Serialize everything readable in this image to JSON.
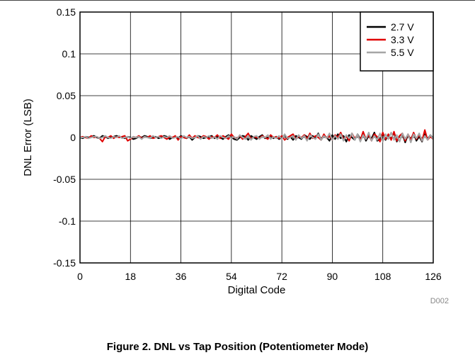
{
  "figure_id": "D002",
  "caption": "Figure 2. DNL vs Tap Position (Potentiometer Mode)",
  "chart_data": {
    "type": "line",
    "title": "",
    "xlabel": "Digital Code",
    "ylabel": "DNL Error (LSB)",
    "xlim": [
      0,
      126
    ],
    "ylim": [
      -0.15,
      0.15
    ],
    "xticks": [
      0,
      18,
      36,
      54,
      72,
      90,
      108,
      126
    ],
    "yticks": [
      -0.15,
      -0.1,
      -0.05,
      0,
      0.05,
      0.1,
      0.15
    ],
    "ytick_labels": [
      "-0.15",
      "-0.1",
      "-0.05",
      "0",
      "0.05",
      "0.1",
      "0.15"
    ],
    "grid": true,
    "legend_position": "top-right",
    "series": [
      {
        "name": "2.7 V",
        "color": "#000000",
        "values": [
          0,
          -0.001,
          0.001,
          0,
          0.001,
          0.002,
          0,
          -0.001,
          0.002,
          0.001,
          -0.001,
          0,
          0.001,
          0.002,
          0.001,
          0,
          -0.001,
          0.001,
          0,
          -0.002,
          -0.001,
          0.001,
          0,
          0.002,
          0.001,
          -0.001,
          0,
          0.001,
          -0.001,
          0,
          0.002,
          0.001,
          -0.002,
          0,
          0.001,
          -0.001,
          0.002,
          0,
          -0.001,
          0.001,
          -0.003,
          0,
          0.002,
          0.001,
          -0.001,
          0,
          0.001,
          0.002,
          -0.001,
          0.001,
          0,
          -0.002,
          0.001,
          0.003,
          0,
          -0.002,
          -0.003,
          0,
          0.002,
          0.001,
          -0.003,
          0.002,
          0,
          -0.002,
          0.001,
          0.003,
          -0.001,
          0,
          0.002,
          -0.001,
          0.001,
          -0.002,
          0,
          0.003,
          -0.002,
          0.001,
          -0.003,
          0.002,
          0,
          -0.002,
          0.003,
          0.001,
          -0.002,
          0.002,
          -0.001,
          0.005,
          -0.003,
          0.002,
          0,
          -0.004,
          0.003,
          -0.002,
          0.004,
          -0.001,
          0.002,
          -0.005,
          0.003,
          0,
          -0.003,
          0.004,
          -0.002,
          0.005,
          -0.004,
          0.002,
          -0.001,
          0.006,
          -0.004,
          -0.002,
          0.005,
          -0.003,
          0.003,
          -0.002,
          0.006,
          -0.005,
          0.002,
          0.004,
          -0.006,
          0.003,
          -0.002,
          0.005,
          -0.004,
          0.001,
          -0.005,
          0.004,
          -0.002,
          0.003,
          -0.001
        ]
      },
      {
        "name": "3.3 V",
        "color": "#e00000",
        "values": [
          0,
          0.001,
          0,
          -0.001,
          0.002,
          0,
          0.001,
          -0.001,
          -0.005,
          0.001,
          0,
          0.002,
          -0.001,
          0.001,
          0,
          0.001,
          0.002,
          -0.004,
          -0.002,
          0.001,
          0,
          0.002,
          -0.001,
          0.001,
          0,
          0.002,
          -0.001,
          0,
          0.001,
          0.002,
          0,
          -0.002,
          0.001,
          0,
          0.002,
          -0.003,
          0.001,
          0,
          -0.001,
          0.003,
          -0.001,
          0.002,
          0,
          -0.001,
          0.002,
          0.001,
          -0.002,
          0.001,
          0,
          0.003,
          -0.001,
          0.002,
          0,
          -0.002,
          0.004,
          0,
          -0.001,
          0.002,
          -0.002,
          0.001,
          0.005,
          -0.002,
          0.001,
          0,
          -0.001,
          0.002,
          0,
          -0.002,
          0.003,
          0,
          0.001,
          -0.001,
          0.002,
          -0.003,
          0,
          0.002,
          0.004,
          -0.002,
          0.001,
          0,
          0.003,
          -0.002,
          0.005,
          -0.001,
          0.002,
          0,
          -0.003,
          0.004,
          -0.001,
          0.002,
          -0.003,
          0.003,
          0,
          0.006,
          -0.002,
          0.002,
          -0.004,
          0.005,
          -0.001,
          0.003,
          -0.003,
          0.007,
          -0.002,
          0.003,
          -0.004,
          0.004,
          0.001,
          -0.005,
          0.006,
          -0.002,
          0.004,
          -0.003,
          0.007,
          -0.004,
          0.002,
          0.005,
          -0.004,
          0.004,
          -0.003,
          0.006,
          -0.002,
          0.003,
          -0.004,
          0.009,
          -0.003,
          0.001,
          -0.002
        ]
      },
      {
        "name": "5.5 V",
        "color": "#a6a6a6",
        "values": [
          0,
          0,
          0.001,
          -0.001,
          0,
          0.001,
          0.001,
          -0.001,
          0,
          0.002,
          0,
          -0.001,
          0.001,
          0,
          0.002,
          -0.001,
          0,
          0.001,
          -0.001,
          0.001,
          0,
          0.001,
          -0.002,
          0.001,
          0,
          -0.001,
          0.002,
          0,
          0.001,
          -0.001,
          0.001,
          0,
          0.002,
          -0.001,
          0,
          0.001,
          -0.002,
          0.002,
          0,
          0.001,
          -0.001,
          0,
          0.002,
          -0.002,
          0.001,
          0,
          0.002,
          -0.001,
          0.001,
          -0.002,
          0.002,
          0,
          -0.001,
          0.002,
          -0.001,
          0.001,
          -0.002,
          0.003,
          0,
          -0.002,
          0.002,
          -0.003,
          0.001,
          0.002,
          -0.002,
          0.001,
          0,
          0.003,
          -0.002,
          0.001,
          -0.001,
          0.002,
          -0.002,
          0.004,
          -0.001,
          0,
          0.002,
          -0.003,
          0.003,
          -0.001,
          0.002,
          -0.004,
          0.003,
          0,
          -0.002,
          0.004,
          -0.003,
          0.002,
          -0.001,
          0.005,
          -0.003,
          0.002,
          -0.002,
          0.004,
          -0.004,
          0.003,
          -0.001,
          0.005,
          -0.003,
          0.004,
          -0.005,
          0.003,
          -0.002,
          0.006,
          -0.004,
          0.002,
          -0.003,
          0.005,
          -0.005,
          0.004,
          -0.002,
          0.006,
          -0.003,
          0.003,
          -0.005,
          0.005,
          -0.002,
          0.004,
          -0.006,
          0.004,
          -0.001,
          0.005,
          -0.004,
          0.002,
          -0.003,
          0.003,
          -0.002
        ]
      }
    ]
  }
}
